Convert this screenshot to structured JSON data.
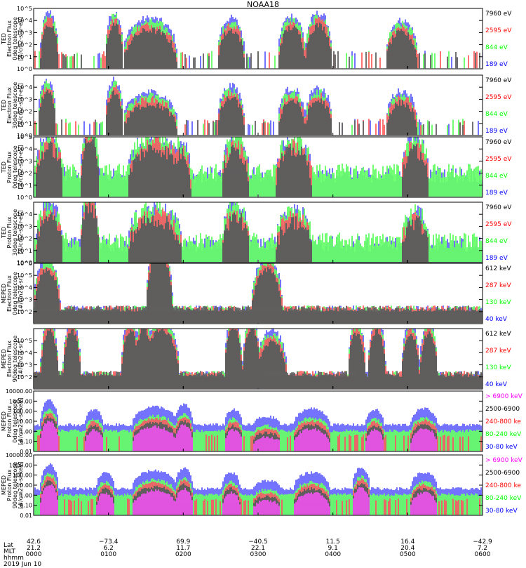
{
  "title": "NOAA18",
  "colors": {
    "black": "#000000",
    "red": "#ff0000",
    "green": "#00ff00",
    "blue": "#0000ff",
    "magenta": "#ff00ff"
  },
  "chart_data": [
    {
      "type": "line",
      "ylabel": [
        "TED",
        "Electron Flux",
        "0deg telescope",
        "[#/cm2-s-sr-eV]"
      ],
      "yscale": "log",
      "ylim_exp": [
        0,
        5
      ],
      "ticks": [
        {
          "v": 0,
          "t": "10^0"
        },
        {
          "v": 1,
          "t": "10^1"
        },
        {
          "v": 2,
          "t": "10^2"
        },
        {
          "v": 3,
          "t": "10^3"
        },
        {
          "v": 4,
          "t": "10^4"
        },
        {
          "v": 5,
          "t": "10^5"
        }
      ],
      "legend": [
        {
          "text": "7960 eV",
          "color": "#000000"
        },
        {
          "text": "2595 eV",
          "color": "#ff0000"
        },
        {
          "text": "844 eV",
          "color": "#00ff00"
        },
        {
          "text": "189 eV",
          "color": "#0000ff"
        }
      ],
      "peaks": [
        {
          "x": 0.035,
          "w": 0.02,
          "h": 3.5
        },
        {
          "x": 0.18,
          "w": 0.02,
          "h": 3.5
        },
        {
          "x": 0.26,
          "w": 0.06,
          "h": 3.0
        },
        {
          "x": 0.44,
          "w": 0.03,
          "h": 3.0
        },
        {
          "x": 0.575,
          "w": 0.03,
          "h": 3.2
        },
        {
          "x": 0.635,
          "w": 0.03,
          "h": 3.4
        },
        {
          "x": 0.82,
          "w": 0.035,
          "h": 2.8
        }
      ],
      "base": 0.9,
      "noise": "sparse"
    },
    {
      "type": "line",
      "ylabel": [
        "TED",
        "Electron Flux",
        "30deg telescope",
        "[#/cm2-s-sr-eV]"
      ],
      "yscale": "log",
      "ylim_exp": [
        0,
        5
      ],
      "ticks": [
        {
          "v": 0,
          "t": "10^0"
        },
        {
          "v": 1,
          "t": "10^1"
        },
        {
          "v": 2,
          "t": "10^2"
        },
        {
          "v": 3,
          "t": "10^3"
        },
        {
          "v": 4,
          "t": "10^4"
        }
      ],
      "legend": [
        {
          "text": "7960 eV",
          "color": "#000000"
        },
        {
          "text": "2595 eV",
          "color": "#ff0000"
        },
        {
          "text": "844 eV",
          "color": "#00ff00"
        },
        {
          "text": "189 eV",
          "color": "#0000ff"
        }
      ],
      "peaks": [
        {
          "x": 0.03,
          "w": 0.02,
          "h": 3.5
        },
        {
          "x": 0.18,
          "w": 0.02,
          "h": 3.5
        },
        {
          "x": 0.26,
          "w": 0.06,
          "h": 2.5
        },
        {
          "x": 0.44,
          "w": 0.03,
          "h": 3.0
        },
        {
          "x": 0.575,
          "w": 0.03,
          "h": 2.8
        },
        {
          "x": 0.635,
          "w": 0.03,
          "h": 2.8
        },
        {
          "x": 0.82,
          "w": 0.035,
          "h": 2.6
        }
      ],
      "base": 0.8,
      "noise": "sparse"
    },
    {
      "type": "line",
      "ylabel": [
        "TED",
        "Proton Flux",
        "0deg telescope",
        "[#/cm2-s-sr-eV]"
      ],
      "yscale": "log",
      "ylim_exp": [
        0,
        5
      ],
      "ticks": [
        {
          "v": 0,
          "t": "10^0"
        },
        {
          "v": 1,
          "t": "10^1"
        },
        {
          "v": 2,
          "t": "10^2"
        },
        {
          "v": 3,
          "t": "10^3"
        },
        {
          "v": 4,
          "t": "10^4"
        },
        {
          "v": 5,
          "t": "10^5"
        }
      ],
      "legend": [
        {
          "text": "7960 eV",
          "color": "#000000"
        },
        {
          "text": "2595 eV",
          "color": "#ff0000"
        },
        {
          "text": "844 eV",
          "color": "#00ff00"
        },
        {
          "text": "189 eV",
          "color": "#0000ff"
        }
      ],
      "peaks": [
        {
          "x": 0.035,
          "w": 0.03,
          "h": 3.2
        },
        {
          "x": 0.125,
          "w": 0.02,
          "h": 4.0
        },
        {
          "x": 0.27,
          "w": 0.06,
          "h": 3.2
        },
        {
          "x": 0.33,
          "w": 0.02,
          "h": 2.8
        },
        {
          "x": 0.45,
          "w": 0.03,
          "h": 3.0
        },
        {
          "x": 0.58,
          "w": 0.04,
          "h": 3.0
        },
        {
          "x": 0.85,
          "w": 0.03,
          "h": 3.0
        }
      ],
      "base": 1.5,
      "noise": "dense"
    },
    {
      "type": "line",
      "ylabel": [
        "TED",
        "Proton Flux",
        "30deg telescope",
        "[#/cm2-s-sr-eV]"
      ],
      "yscale": "log",
      "ylim_exp": [
        0,
        5
      ],
      "ticks": [
        {
          "v": 0,
          "t": "10^0"
        },
        {
          "v": 1,
          "t": "10^1"
        },
        {
          "v": 2,
          "t": "10^2"
        },
        {
          "v": 3,
          "t": "10^3"
        },
        {
          "v": 4,
          "t": "10^4"
        }
      ],
      "legend": [
        {
          "text": "7960 eV",
          "color": "#000000"
        },
        {
          "text": "2595 eV",
          "color": "#ff0000"
        },
        {
          "text": "844 eV",
          "color": "#00ff00"
        },
        {
          "text": "189 eV",
          "color": "#0000ff"
        }
      ],
      "peaks": [
        {
          "x": 0.035,
          "w": 0.03,
          "h": 3.2
        },
        {
          "x": 0.125,
          "w": 0.02,
          "h": 4.2
        },
        {
          "x": 0.27,
          "w": 0.06,
          "h": 3.0
        },
        {
          "x": 0.45,
          "w": 0.03,
          "h": 3.2
        },
        {
          "x": 0.58,
          "w": 0.04,
          "h": 2.8
        },
        {
          "x": 0.85,
          "w": 0.03,
          "h": 2.8
        }
      ],
      "base": 1.2,
      "noise": "dense"
    },
    {
      "type": "line",
      "ylabel": [
        "MEPED",
        "Electron Flux",
        "0deg telescope",
        "[#/cm2-s-sr]"
      ],
      "yscale": "log",
      "ylim_exp": [
        1,
        6
      ],
      "ticks": [
        {
          "v": 2,
          "t": "10^2"
        },
        {
          "v": 3,
          "t": "10^3"
        },
        {
          "v": 4,
          "t": "10^4"
        },
        {
          "v": 5,
          "t": "10^5"
        },
        {
          "v": 6,
          "t": "10^6"
        }
      ],
      "legend": [
        {
          "text": "612 keV",
          "color": "#000000"
        },
        {
          "text": "287 keV",
          "color": "#ff0000"
        },
        {
          "text": "130 keV",
          "color": "#00ff00"
        },
        {
          "text": "40 keV",
          "color": "#0000ff"
        }
      ],
      "peaks": [
        {
          "x": 0.03,
          "w": 0.03,
          "h": 4.2
        },
        {
          "x": 0.28,
          "w": 0.03,
          "h": 5.6
        },
        {
          "x": 0.52,
          "w": 0.035,
          "h": 4.2
        }
      ],
      "base": 2.0,
      "noise": "baseline"
    },
    {
      "type": "line",
      "ylabel": [
        "MEPED",
        "Electron Flux",
        "90deg telescope",
        "[#/cm2-s-sr]"
      ],
      "yscale": "log",
      "ylim_exp": [
        1,
        6
      ],
      "ticks": [
        {
          "v": 2,
          "t": "10^2"
        },
        {
          "v": 3,
          "t": "10^3"
        },
        {
          "v": 4,
          "t": "10^4"
        },
        {
          "v": 5,
          "t": "10^5"
        }
      ],
      "legend": [
        {
          "text": "612 keV",
          "color": "#000000"
        },
        {
          "text": "287 keV",
          "color": "#ff0000"
        },
        {
          "text": "130 keV",
          "color": "#00ff00"
        },
        {
          "text": "40 keV",
          "color": "#0000ff"
        }
      ],
      "peaks": [
        {
          "x": 0.035,
          "w": 0.02,
          "h": 4.6
        },
        {
          "x": 0.085,
          "w": 0.02,
          "h": 4.5
        },
        {
          "x": 0.215,
          "w": 0.02,
          "h": 4.6
        },
        {
          "x": 0.245,
          "w": 0.02,
          "h": 4.8
        },
        {
          "x": 0.285,
          "w": 0.04,
          "h": 4.6
        },
        {
          "x": 0.445,
          "w": 0.02,
          "h": 4.8
        },
        {
          "x": 0.485,
          "w": 0.02,
          "h": 4.7
        },
        {
          "x": 0.53,
          "w": 0.035,
          "h": 3.6
        },
        {
          "x": 0.72,
          "w": 0.02,
          "h": 4.4
        },
        {
          "x": 0.765,
          "w": 0.02,
          "h": 4.6
        },
        {
          "x": 0.84,
          "w": 0.02,
          "h": 4.3
        },
        {
          "x": 0.88,
          "w": 0.02,
          "h": 4.4
        }
      ],
      "base": 2.0,
      "noise": "baseline"
    },
    {
      "type": "line",
      "ylabel": [
        "MEPED",
        "Proton Flux",
        "0deg telescope",
        "[#/cm2-s-sr-keV]"
      ],
      "yscale": "log",
      "ylim_exp": [
        -2,
        4
      ],
      "ticks": [
        {
          "v": -2,
          "t": "0.01"
        },
        {
          "v": -1,
          "t": "0.10"
        },
        {
          "v": 0,
          "t": "1.00"
        },
        {
          "v": 1,
          "t": "10.00"
        },
        {
          "v": 2,
          "t": "100.00"
        },
        {
          "v": 3,
          "t": "1000.00"
        },
        {
          "v": 4,
          "t": "10000.00"
        }
      ],
      "legend": [
        {
          "text": "> 6900 keV",
          "color": "#ff00ff"
        },
        {
          "text": "2500-6900",
          "color": "#000000"
        },
        {
          "text": "240-800 ke",
          "color": "#ff0000"
        },
        {
          "text": "80-240 keV",
          "color": "#00ff00"
        },
        {
          "text": "30-80 keV",
          "color": "#0000ff"
        }
      ],
      "peaks": [
        {
          "x": 0.035,
          "w": 0.02,
          "h": 2.4
        },
        {
          "x": 0.135,
          "w": 0.02,
          "h": 1.5
        },
        {
          "x": 0.27,
          "w": 0.05,
          "h": 1.8
        },
        {
          "x": 0.335,
          "w": 0.02,
          "h": 2.0
        },
        {
          "x": 0.445,
          "w": 0.02,
          "h": 1.5
        },
        {
          "x": 0.52,
          "w": 0.03,
          "h": 0.8
        },
        {
          "x": 0.62,
          "w": 0.04,
          "h": 1.6
        },
        {
          "x": 0.76,
          "w": 0.02,
          "h": 1.5
        },
        {
          "x": 0.87,
          "w": 0.03,
          "h": 1.6
        }
      ],
      "base": 0.0,
      "noise": "proton"
    },
    {
      "type": "line",
      "ylabel": [
        "MEPED",
        "Proton Flux",
        "90deg telescope",
        "[#/cm2-s-sr-keV]"
      ],
      "yscale": "log",
      "ylim_exp": [
        -2,
        4
      ],
      "ticks": [
        {
          "v": -2,
          "t": "0.01"
        },
        {
          "v": -1,
          "t": "0.10"
        },
        {
          "v": 0,
          "t": "1.00"
        },
        {
          "v": 1,
          "t": "10.00"
        },
        {
          "v": 2,
          "t": "100.00"
        },
        {
          "v": 3,
          "t": "1000.00"
        },
        {
          "v": 4,
          "t": "10000.00"
        }
      ],
      "legend": [
        {
          "text": "> 6900 keV",
          "color": "#ff00ff"
        },
        {
          "text": "2500-6900",
          "color": "#000000"
        },
        {
          "text": "240-800 ke",
          "color": "#ff0000"
        },
        {
          "text": "80-240 keV",
          "color": "#00ff00"
        },
        {
          "text": "30-80 keV",
          "color": "#0000ff"
        }
      ],
      "peaks": [
        {
          "x": 0.035,
          "w": 0.02,
          "h": 2.4
        },
        {
          "x": 0.16,
          "w": 0.02,
          "h": 1.6
        },
        {
          "x": 0.27,
          "w": 0.05,
          "h": 1.8
        },
        {
          "x": 0.335,
          "w": 0.02,
          "h": 2.0
        },
        {
          "x": 0.44,
          "w": 0.02,
          "h": 1.6
        },
        {
          "x": 0.52,
          "w": 0.03,
          "h": 0.8
        },
        {
          "x": 0.62,
          "w": 0.04,
          "h": 1.6
        },
        {
          "x": 0.73,
          "w": 0.02,
          "h": 2.1
        },
        {
          "x": 0.87,
          "w": 0.03,
          "h": 1.6
        }
      ],
      "base": 0.0,
      "noise": "proton"
    }
  ],
  "x_axis": {
    "row_labels": [
      "Lat",
      "MLT",
      "hhmm",
      "2019 Jun 10"
    ],
    "ticks": [
      {
        "x": 0.0,
        "lat": "42.6",
        "mlt": "21.2",
        "hhmm": "0000"
      },
      {
        "x": 0.1667,
        "lat": "−73.4",
        "mlt": "6.2",
        "hhmm": "0100"
      },
      {
        "x": 0.3333,
        "lat": "69.9",
        "mlt": "11.7",
        "hhmm": "0200"
      },
      {
        "x": 0.5,
        "lat": "−40.5",
        "mlt": "22.1",
        "hhmm": "0300"
      },
      {
        "x": 0.6667,
        "lat": "11.5",
        "mlt": "9.1",
        "hhmm": "0400"
      },
      {
        "x": 0.8333,
        "lat": "16.4",
        "mlt": "20.4",
        "hhmm": "0500"
      },
      {
        "x": 1.0,
        "lat": "−42.9",
        "mlt": "7.2",
        "hhmm": "0600"
      }
    ]
  }
}
